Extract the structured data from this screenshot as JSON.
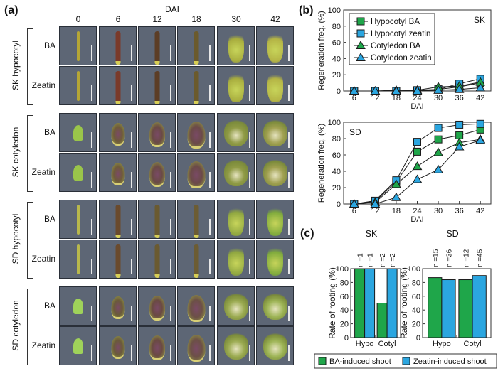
{
  "figure": {
    "panel_a": {
      "label": "(a)",
      "axis_title": "DAI",
      "columns": [
        "0",
        "6",
        "12",
        "18",
        "30",
        "42"
      ],
      "groups": [
        {
          "name": "SK hypocotyl",
          "rows": [
            "BA",
            "Zeatin"
          ],
          "tissue": "hypocotyl",
          "stage_colors": [
            "#b5a636",
            "#7a3a2a",
            "#5c3d25",
            "#6b5a2c",
            "#a8ad3e",
            "#b4b445"
          ]
        },
        {
          "name": "SK cotyledon",
          "rows": [
            "BA",
            "Zeatin"
          ],
          "tissue": "cotyledon",
          "stage_colors": [
            "#9ac54a",
            "#6e5a3a",
            "#6a4a45",
            "#6b4a48",
            "#8f9a45",
            "#a0a050"
          ]
        },
        {
          "name": "SD hypocotyl",
          "rows": [
            "BA",
            "Zeatin"
          ],
          "tissue": "hypocotyl",
          "stage_colors": [
            "#b8b84c",
            "#6a4a2c",
            "#6a5a30",
            "#6c5c33",
            "#8fa640",
            "#7faa3c"
          ]
        },
        {
          "name": "SD cotyledon",
          "rows": [
            "BA",
            "Zeatin"
          ],
          "tissue": "cotyledon",
          "stage_colors": [
            "#9fd25a",
            "#6a5a3a",
            "#6a4a42",
            "#6c5046",
            "#9aaa50",
            "#9db455"
          ]
        }
      ]
    },
    "panel_b": {
      "label": "(b)"
    },
    "panel_c": {
      "label": "(c)"
    }
  },
  "chart_data": [
    {
      "type": "line",
      "title": "SK",
      "xlabel": "DAI",
      "ylabel": "Regeneration freq. (%)",
      "x": [
        6,
        12,
        18,
        24,
        30,
        36,
        42
      ],
      "ylim": [
        0,
        100
      ],
      "yticks": [
        0,
        20,
        40,
        60,
        80,
        100
      ],
      "legend_position": "top-left",
      "series": [
        {
          "name": "Hypocotyl BA",
          "marker": "square",
          "color": "#1fa64a",
          "values": [
            0,
            0,
            0,
            0,
            2,
            5,
            10
          ]
        },
        {
          "name": "Hypocotyl zeatin",
          "marker": "square",
          "color": "#2ba6e0",
          "values": [
            0,
            0,
            0,
            1,
            2,
            9,
            15
          ]
        },
        {
          "name": "Cotyledon BA",
          "marker": "triangle",
          "color": "#1fa64a",
          "values": [
            0,
            0,
            1,
            1,
            5,
            6,
            11
          ]
        },
        {
          "name": "Cotyledon zeatin",
          "marker": "triangle",
          "color": "#2ba6e0",
          "values": [
            0,
            0,
            0,
            0,
            1,
            2,
            4
          ]
        }
      ]
    },
    {
      "type": "line",
      "title": "SD",
      "xlabel": "DAI",
      "ylabel": "Regeneration freq. (%)",
      "x": [
        6,
        12,
        18,
        24,
        30,
        36,
        42
      ],
      "ylim": [
        0,
        100
      ],
      "yticks": [
        0,
        20,
        40,
        60,
        80,
        100
      ],
      "series": [
        {
          "name": "Hypocotyl BA",
          "marker": "square",
          "color": "#1fa64a",
          "values": [
            0,
            3,
            27,
            64,
            79,
            84,
            91
          ]
        },
        {
          "name": "Hypocotyl zeatin",
          "marker": "square",
          "color": "#2ba6e0",
          "values": [
            0,
            4,
            29,
            76,
            93,
            97,
            98
          ]
        },
        {
          "name": "Cotyledon BA",
          "marker": "triangle",
          "color": "#1fa64a",
          "values": [
            0,
            2,
            24,
            46,
            63,
            75,
            79
          ]
        },
        {
          "name": "Cotyledon zeatin",
          "marker": "triangle",
          "color": "#2ba6e0",
          "values": [
            0,
            0,
            8,
            30,
            42,
            70,
            78
          ]
        }
      ]
    },
    {
      "type": "bar",
      "title": "SK",
      "ylabel": "Rate of rooting (%)",
      "categories": [
        "Hypo",
        "Cotyl"
      ],
      "ylim": [
        0,
        100
      ],
      "yticks": [
        0,
        20,
        40,
        60,
        80,
        100
      ],
      "series": [
        {
          "name": "BA-induced shoot",
          "color": "#1fa64a",
          "values": [
            100,
            50
          ],
          "n": [
            "n =1",
            "n =2"
          ]
        },
        {
          "name": "Zeatin-induced shoot",
          "color": "#2ba6e0",
          "values": [
            100,
            100
          ],
          "n": [
            "n =1",
            "n =2"
          ]
        }
      ]
    },
    {
      "type": "bar",
      "title": "SD",
      "ylabel": "Rate of rooting (%)",
      "categories": [
        "Hypo",
        "Cotyl"
      ],
      "ylim": [
        0,
        100
      ],
      "yticks": [
        0,
        20,
        40,
        60,
        80,
        100
      ],
      "series": [
        {
          "name": "BA-induced shoot",
          "color": "#1fa64a",
          "values": [
            87,
            84
          ],
          "n": [
            "n =15",
            "n =12"
          ]
        },
        {
          "name": "Zeatin-induced shoot",
          "color": "#2ba6e0",
          "values": [
            84,
            90
          ],
          "n": [
            "n =36",
            "n =45"
          ]
        }
      ]
    }
  ],
  "legend_c": {
    "items": [
      {
        "label": "BA-induced shoot",
        "color": "#1fa64a"
      },
      {
        "label": "Zeatin-induced shoot",
        "color": "#2ba6e0"
      }
    ]
  }
}
